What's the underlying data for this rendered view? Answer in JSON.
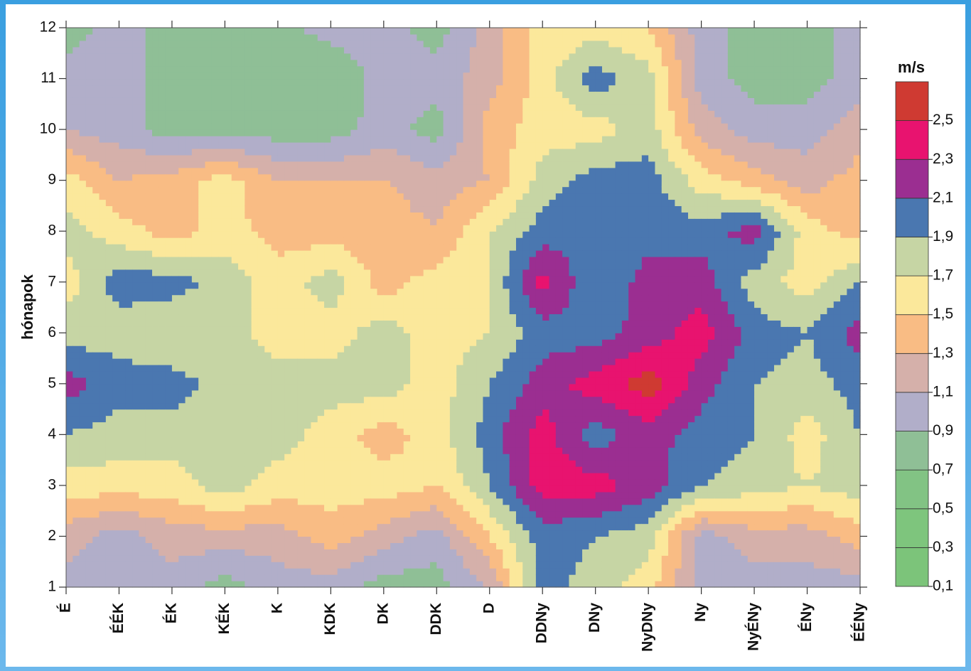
{
  "chart_data": {
    "type": "contour",
    "x": [
      "É",
      "ÉÉK",
      "ÉK",
      "KÉK",
      "K",
      "KDK",
      "DK",
      "DDK",
      "D",
      "DDNy",
      "DNy",
      "NyDNy",
      "Ny",
      "NyÉNy",
      "ÉNy",
      "ÉÉNy"
    ],
    "y": [
      1,
      2,
      3,
      4,
      5,
      6,
      7,
      8,
      9,
      10,
      11,
      12
    ],
    "ylabel": "hónapok",
    "ylim": [
      1,
      12
    ],
    "yticks": [
      1,
      2,
      3,
      4,
      5,
      6,
      7,
      8,
      9,
      10,
      11,
      12
    ],
    "z": [
      [
        1.0,
        1.0,
        1.0,
        0.8,
        1.0,
        1.0,
        0.8,
        0.8,
        1.1,
        2.0,
        1.8,
        1.6,
        1.0,
        1.0,
        1.0,
        1.0
      ],
      [
        1.2,
        1.0,
        1.2,
        1.2,
        1.2,
        1.4,
        1.2,
        1.0,
        1.5,
        2.0,
        1.9,
        1.8,
        1.0,
        1.2,
        1.2,
        1.4
      ],
      [
        1.6,
        1.6,
        1.6,
        1.8,
        1.6,
        1.6,
        1.6,
        1.5,
        1.9,
        2.4,
        2.4,
        2.2,
        1.9,
        1.8,
        1.7,
        1.8
      ],
      [
        1.9,
        1.8,
        1.8,
        1.8,
        1.8,
        1.6,
        1.4,
        1.6,
        2.0,
        2.4,
        2.0,
        2.2,
        2.0,
        1.9,
        1.6,
        1.9
      ],
      [
        2.2,
        2.0,
        2.0,
        1.8,
        1.8,
        1.8,
        1.8,
        1.6,
        1.9,
        2.2,
        2.4,
        2.6,
        2.2,
        1.9,
        1.8,
        2.0
      ],
      [
        1.8,
        1.8,
        1.7,
        1.8,
        1.6,
        1.6,
        1.8,
        1.6,
        1.7,
        2.0,
        2.0,
        2.2,
        2.4,
        2.0,
        1.9,
        2.2
      ],
      [
        1.6,
        2.0,
        2.0,
        1.8,
        1.6,
        1.8,
        1.4,
        1.6,
        1.7,
        2.4,
        1.9,
        2.2,
        2.2,
        1.8,
        1.6,
        1.9
      ],
      [
        1.8,
        1.6,
        1.4,
        1.6,
        1.4,
        1.4,
        1.4,
        1.3,
        1.7,
        2.0,
        2.0,
        2.0,
        2.0,
        2.2,
        1.6,
        1.4
      ],
      [
        1.6,
        1.3,
        1.4,
        1.6,
        1.3,
        1.3,
        1.3,
        1.2,
        1.3,
        1.8,
        2.0,
        2.0,
        1.6,
        1.4,
        1.2,
        1.4
      ],
      [
        1.1,
        1.0,
        0.8,
        0.8,
        0.8,
        0.8,
        1.0,
        0.8,
        1.4,
        1.6,
        1.6,
        1.8,
        1.2,
        1.0,
        1.0,
        1.2
      ],
      [
        1.0,
        1.0,
        0.8,
        0.8,
        0.8,
        0.7,
        1.0,
        1.0,
        1.2,
        1.6,
        2.0,
        1.8,
        1.0,
        0.8,
        0.8,
        1.0
      ],
      [
        0.8,
        1.0,
        0.8,
        0.8,
        0.8,
        1.0,
        1.0,
        0.8,
        1.2,
        1.6,
        1.6,
        1.5,
        1.0,
        0.8,
        0.8,
        1.0
      ]
    ],
    "colorbar_title": "m/s",
    "colorbar_lim": [
      0.1,
      2.7
    ],
    "levels": [
      {
        "value": 0.1,
        "label": "0,1"
      },
      {
        "value": 0.3,
        "label": "0,3"
      },
      {
        "value": 0.5,
        "label": "0,5"
      },
      {
        "value": 0.7,
        "label": "0,7"
      },
      {
        "value": 0.9,
        "label": "0,9"
      },
      {
        "value": 1.1,
        "label": "1,1"
      },
      {
        "value": 1.3,
        "label": "1,3"
      },
      {
        "value": 1.5,
        "label": "1,5"
      },
      {
        "value": 1.7,
        "label": "1,7"
      },
      {
        "value": 1.9,
        "label": "1,9"
      },
      {
        "value": 2.1,
        "label": "2,1"
      },
      {
        "value": 2.3,
        "label": "2,3"
      },
      {
        "value": 2.5,
        "label": "2,5"
      }
    ],
    "colors": [
      "#7cc47a",
      "#7ec57d",
      "#82c384",
      "#8fbf96",
      "#b1aec9",
      "#d5b0aa",
      "#f9bc84",
      "#fbe89b",
      "#c6d5a4",
      "#4a77b0",
      "#9b2e91",
      "#e8136f",
      "#cf3a32"
    ]
  }
}
